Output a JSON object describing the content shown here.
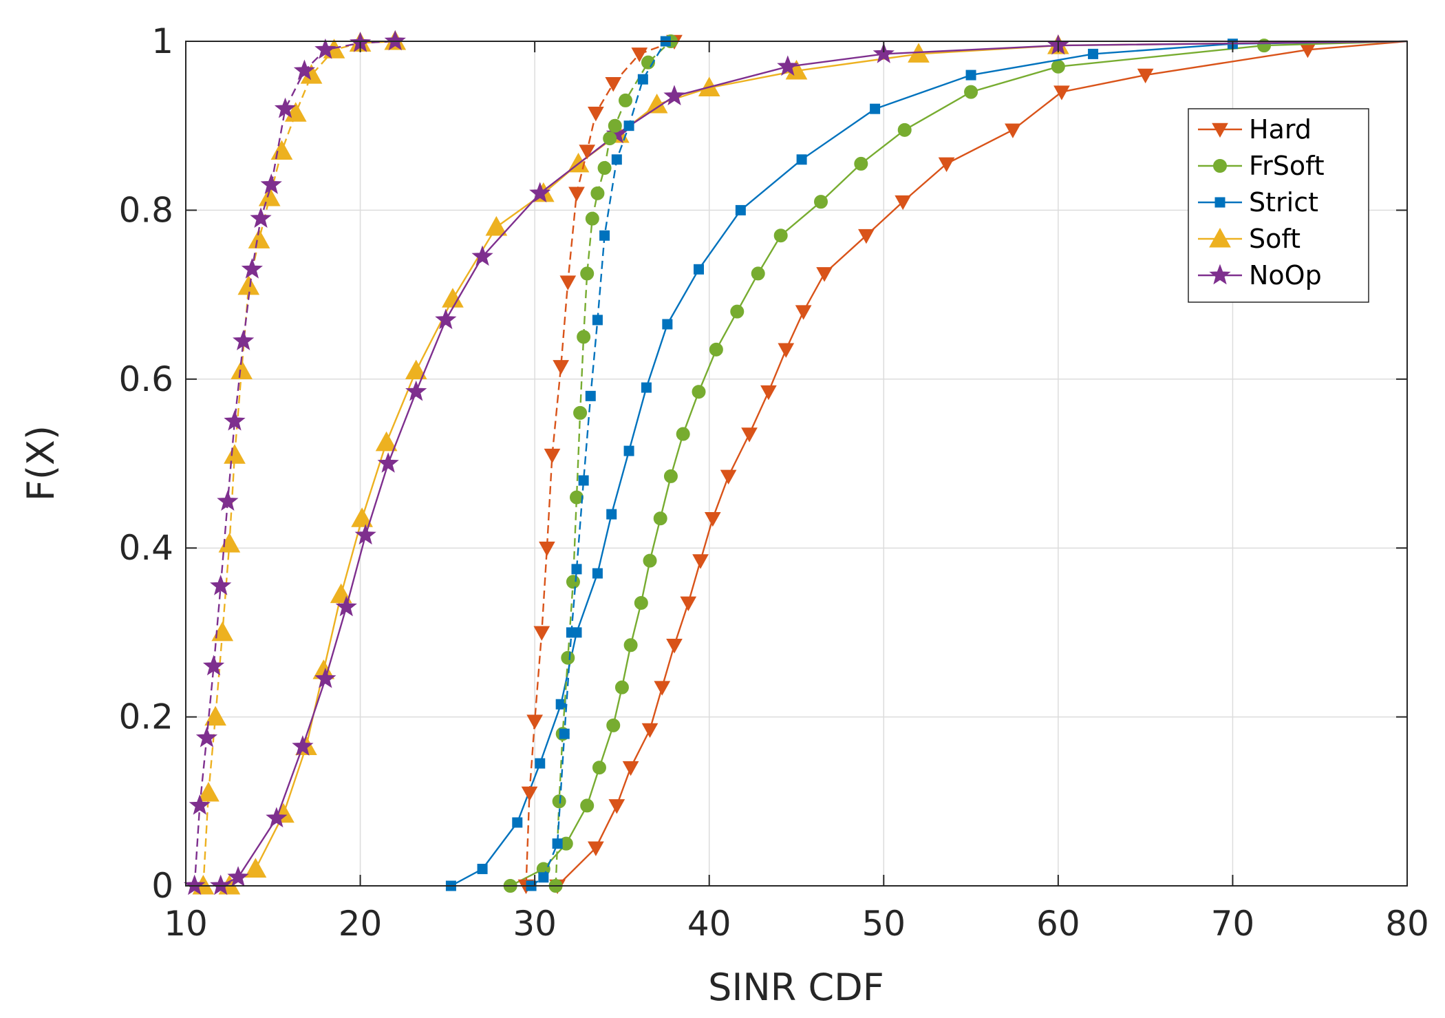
{
  "chart_data": {
    "type": "line",
    "title": "",
    "xlabel": "SINR CDF",
    "ylabel": "F(X)",
    "xlim": [
      10,
      80
    ],
    "ylim": [
      0,
      1
    ],
    "grid": true,
    "legend_position": "top-right",
    "x_ticks": [
      10,
      20,
      30,
      40,
      50,
      60,
      70,
      80
    ],
    "y_ticks": [
      0,
      0.2,
      0.4,
      0.6,
      0.8,
      1
    ],
    "x_tick_labels": [
      "10",
      "20",
      "30",
      "40",
      "50",
      "60",
      "70",
      "80"
    ],
    "y_tick_labels": [
      "0",
      "0.2",
      "0.4",
      "0.6",
      "0.8",
      "1"
    ],
    "legend": [
      {
        "name": "Hard",
        "color": "#D95319",
        "marker": "triangle-down"
      },
      {
        "name": "FrSoft",
        "color": "#77AC30",
        "marker": "circle"
      },
      {
        "name": "Strict",
        "color": "#0072BD",
        "marker": "square"
      },
      {
        "name": "Soft",
        "color": "#EDB120",
        "marker": "triangle-up"
      },
      {
        "name": "NoOp",
        "color": "#7E2F8E",
        "marker": "star"
      }
    ],
    "series": [
      {
        "name": "Hard",
        "color": "#D95319",
        "marker": "triangle-down",
        "dashed": false,
        "x": [
          31.3,
          33.5,
          34.7,
          35.5,
          36.6,
          37.3,
          38.0,
          38.8,
          39.5,
          40.2,
          41.1,
          42.3,
          43.4,
          44.4,
          45.4,
          46.6,
          49.0,
          51.1,
          53.6,
          57.4,
          60.2,
          65.0,
          74.3,
          80.0
        ],
        "y": [
          0.0,
          0.045,
          0.095,
          0.14,
          0.185,
          0.235,
          0.285,
          0.335,
          0.385,
          0.435,
          0.485,
          0.535,
          0.585,
          0.635,
          0.68,
          0.725,
          0.77,
          0.81,
          0.855,
          0.895,
          0.94,
          0.96,
          0.99,
          1.0
        ]
      },
      {
        "name": "FrSoft",
        "color": "#77AC30",
        "marker": "circle",
        "dashed": false,
        "x": [
          28.6,
          30.5,
          31.8,
          33.0,
          33.7,
          34.5,
          35.0,
          35.5,
          36.1,
          36.6,
          37.2,
          37.8,
          38.5,
          39.4,
          40.4,
          41.6,
          42.8,
          44.1,
          46.4,
          48.7,
          51.2,
          55.0,
          60.0,
          71.8,
          80.0
        ],
        "y": [
          0.0,
          0.02,
          0.05,
          0.095,
          0.14,
          0.19,
          0.235,
          0.285,
          0.335,
          0.385,
          0.435,
          0.485,
          0.535,
          0.585,
          0.635,
          0.68,
          0.725,
          0.77,
          0.81,
          0.855,
          0.895,
          0.94,
          0.97,
          0.995,
          1.0
        ]
      },
      {
        "name": "Strict",
        "color": "#0072BD",
        "marker": "square",
        "dashed": false,
        "x": [
          25.2,
          27.0,
          29.0,
          30.3,
          31.5,
          32.4,
          33.6,
          34.4,
          35.4,
          36.4,
          37.6,
          39.4,
          41.8,
          45.3,
          49.5,
          55.0,
          62.0,
          70.0,
          80.0
        ],
        "y": [
          0.0,
          0.02,
          0.075,
          0.145,
          0.215,
          0.3,
          0.37,
          0.44,
          0.515,
          0.59,
          0.665,
          0.73,
          0.8,
          0.86,
          0.92,
          0.96,
          0.985,
          0.997,
          1.0
        ]
      },
      {
        "name": "Soft",
        "color": "#EDB120",
        "marker": "triangle-up",
        "dashed": false,
        "x": [
          12.5,
          14.0,
          15.6,
          16.9,
          17.9,
          18.9,
          20.1,
          21.5,
          23.2,
          25.3,
          27.8,
          30.5,
          32.5,
          34.8,
          37.0,
          40.0,
          45.0,
          52.0,
          60.0,
          80.0
        ],
        "y": [
          0.0,
          0.02,
          0.085,
          0.165,
          0.255,
          0.345,
          0.435,
          0.525,
          0.61,
          0.695,
          0.78,
          0.82,
          0.855,
          0.89,
          0.925,
          0.945,
          0.965,
          0.985,
          0.995,
          1.0
        ]
      },
      {
        "name": "NoOp",
        "color": "#7E2F8E",
        "marker": "star",
        "dashed": false,
        "x": [
          12.0,
          13.0,
          15.2,
          16.7,
          18.0,
          19.2,
          20.3,
          21.6,
          23.2,
          24.9,
          27.0,
          30.3,
          34.7,
          38.0,
          44.5,
          50.0,
          60.0,
          80.0
        ],
        "y": [
          0.0,
          0.01,
          0.08,
          0.165,
          0.245,
          0.33,
          0.415,
          0.5,
          0.585,
          0.67,
          0.745,
          0.82,
          0.89,
          0.935,
          0.97,
          0.985,
          0.995,
          1.0
        ]
      },
      {
        "name": "Hard (dashed)",
        "color": "#D95319",
        "marker": "triangle-down",
        "dashed": true,
        "x": [
          29.5,
          29.7,
          30.0,
          30.4,
          30.7,
          31.0,
          31.5,
          31.9,
          32.4,
          33.0,
          33.5,
          34.5,
          36.0,
          38.0
        ],
        "y": [
          0.0,
          0.11,
          0.195,
          0.3,
          0.4,
          0.51,
          0.615,
          0.715,
          0.82,
          0.87,
          0.915,
          0.95,
          0.985,
          1.0
        ]
      },
      {
        "name": "FrSoft (dashed)",
        "color": "#77AC30",
        "marker": "circle",
        "dashed": true,
        "x": [
          31.2,
          31.4,
          31.6,
          31.9,
          32.2,
          32.4,
          32.6,
          32.8,
          33.0,
          33.3,
          33.6,
          34.0,
          34.3,
          34.6,
          35.2,
          36.5,
          37.8
        ],
        "y": [
          0.0,
          0.1,
          0.18,
          0.27,
          0.36,
          0.46,
          0.56,
          0.65,
          0.725,
          0.79,
          0.82,
          0.85,
          0.885,
          0.9,
          0.93,
          0.975,
          1.0
        ]
      },
      {
        "name": "Strict (dashed)",
        "color": "#0072BD",
        "marker": "square",
        "dashed": true,
        "x": [
          29.8,
          30.5,
          31.3,
          31.7,
          32.1,
          32.4,
          32.8,
          33.2,
          33.6,
          34.0,
          34.7,
          35.4,
          36.2,
          37.5
        ],
        "y": [
          0.0,
          0.01,
          0.05,
          0.18,
          0.3,
          0.375,
          0.48,
          0.58,
          0.67,
          0.77,
          0.86,
          0.9,
          0.955,
          1.0
        ]
      },
      {
        "name": "Soft (dashed)",
        "color": "#EDB120",
        "marker": "triangle-up",
        "dashed": true,
        "x": [
          11.0,
          11.3,
          11.7,
          12.1,
          12.5,
          12.8,
          13.2,
          13.6,
          14.2,
          14.8,
          15.5,
          16.3,
          17.2,
          18.5,
          20.0,
          22.0
        ],
        "y": [
          0.0,
          0.11,
          0.2,
          0.3,
          0.405,
          0.51,
          0.61,
          0.71,
          0.765,
          0.815,
          0.87,
          0.915,
          0.96,
          0.99,
          0.998,
          1.0
        ]
      },
      {
        "name": "NoOp (dashed)",
        "color": "#7E2F8E",
        "marker": "star",
        "dashed": true,
        "x": [
          10.5,
          10.8,
          11.2,
          11.6,
          12.0,
          12.4,
          12.8,
          13.3,
          13.8,
          14.3,
          14.9,
          15.7,
          16.8,
          18.0,
          20.0,
          22.0
        ],
        "y": [
          0.0,
          0.095,
          0.175,
          0.26,
          0.355,
          0.455,
          0.55,
          0.645,
          0.73,
          0.79,
          0.83,
          0.92,
          0.965,
          0.99,
          0.998,
          1.0
        ]
      }
    ]
  }
}
